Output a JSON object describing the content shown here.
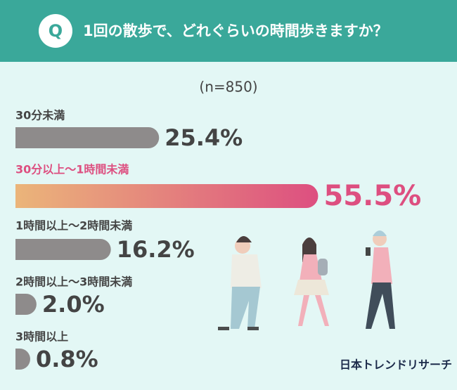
{
  "header": {
    "badge": "Q",
    "title": "1回の散歩で、どれぐらいの時間歩きますか？"
  },
  "chart_data": {
    "type": "hbar",
    "subtitle": "(n=850)",
    "categories": [
      "30分未満",
      "30分以上～1時間未満",
      "1時間以上～2時間未満",
      "2時間以上～3時間未満",
      "3時間以上"
    ],
    "values": [
      25.4,
      55.5,
      16.2,
      2.0,
      0.8
    ],
    "value_labels": [
      "25.4%",
      "55.5%",
      "16.2%",
      "2.0%",
      "0.8%"
    ],
    "color": "#8e8b8b",
    "highlight": {
      "index": 1,
      "colors": [
        "#ebb57a",
        "#dd4f80"
      ]
    }
  },
  "footer": {
    "brand": "日本トレンドリサーチ"
  }
}
